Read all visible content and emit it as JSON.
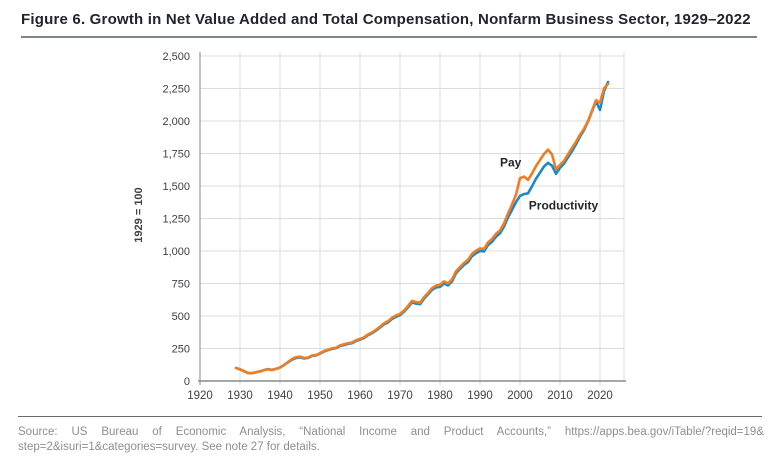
{
  "figure": {
    "title": "Figure 6. Growth in Net Value Added and Total Compensation, Nonfarm Business Sector, 1929–2022",
    "source_line1": "Source: US Bureau of Economic Analysis, “National Income and Product Accounts,” https://apps.bea.gov/iTable/?reqid=19&",
    "source_line2": "step=2&isuri=1&categories=survey. See note 27 for details."
  },
  "chart_data": {
    "type": "line",
    "title": "",
    "xlabel": "",
    "ylabel": "1929 = 100",
    "xlim": [
      1920,
      2026
    ],
    "ylim": [
      0,
      2500
    ],
    "grid": true,
    "legend": "inline-labels",
    "x_ticks": [
      1920,
      1930,
      1940,
      1950,
      1960,
      1970,
      1980,
      1990,
      2000,
      2010,
      2020
    ],
    "y_ticks": [
      0,
      250,
      500,
      750,
      1000,
      1250,
      1500,
      1750,
      2000,
      2250,
      2500
    ],
    "y_tick_labels": [
      "0",
      "250",
      "500",
      "750",
      "1,000",
      "1,250",
      "1,500",
      "1,750",
      "2,000",
      "2,250",
      "2,500"
    ],
    "colors": {
      "pay": "#EE7E23",
      "productivity": "#1E87C8",
      "grid": "#DBDCDE",
      "axis_left": "#9B9B9B",
      "axis_bottom": "#8A8A8A",
      "tick_text": "#3E4048",
      "annotation_text": "#23262F"
    },
    "annotations": [
      {
        "label": "Pay",
        "x": 1995,
        "y": 1650
      },
      {
        "label": "Productivity",
        "x": 2002.2,
        "y": 1320
      }
    ],
    "x": [
      1929,
      1930,
      1931,
      1932,
      1933,
      1934,
      1935,
      1936,
      1937,
      1938,
      1939,
      1940,
      1941,
      1942,
      1943,
      1944,
      1945,
      1946,
      1947,
      1948,
      1949,
      1950,
      1951,
      1952,
      1953,
      1954,
      1955,
      1956,
      1957,
      1958,
      1959,
      1960,
      1961,
      1962,
      1963,
      1964,
      1965,
      1966,
      1967,
      1968,
      1969,
      1970,
      1971,
      1972,
      1973,
      1974,
      1975,
      1976,
      1977,
      1978,
      1979,
      1980,
      1981,
      1982,
      1983,
      1984,
      1985,
      1986,
      1987,
      1988,
      1989,
      1990,
      1991,
      1992,
      1993,
      1994,
      1995,
      1996,
      1997,
      1998,
      1999,
      2000,
      2001,
      2002,
      2003,
      2004,
      2005,
      2006,
      2007,
      2008,
      2009,
      2010,
      2011,
      2012,
      2013,
      2014,
      2015,
      2016,
      2017,
      2018,
      2019,
      2020,
      2021,
      2022
    ],
    "series": [
      {
        "name": "Productivity",
        "color_key": "productivity",
        "values": [
          100,
          90,
          76,
          62,
          60,
          68,
          74,
          84,
          91,
          85,
          94,
          104,
          122,
          144,
          164,
          177,
          182,
          173,
          178,
          192,
          196,
          211,
          227,
          237,
          247,
          252,
          269,
          276,
          285,
          291,
          308,
          318,
          330,
          352,
          368,
          388,
          411,
          436,
          451,
          477,
          494,
          506,
          533,
          566,
          605,
          595,
          591,
          633,
          666,
          701,
          719,
          724,
          750,
          735,
          766,
          829,
          862,
          892,
          915,
          960,
          983,
          1000,
          997,
          1046,
          1071,
          1110,
          1136,
          1188,
          1258,
          1316,
          1376,
          1424,
          1438,
          1444,
          1498,
          1556,
          1602,
          1650,
          1678,
          1656,
          1594,
          1640,
          1672,
          1720,
          1768,
          1820,
          1880,
          1930,
          1995,
          2075,
          2150,
          2085,
          2230,
          2300
        ]
      },
      {
        "name": "Pay",
        "color_key": "pay",
        "values": [
          100,
          89,
          75,
          61,
          59,
          67,
          73,
          83,
          91,
          84,
          93,
          103,
          123,
          147,
          169,
          183,
          188,
          177,
          181,
          195,
          199,
          214,
          231,
          241,
          251,
          256,
          274,
          282,
          291,
          296,
          314,
          324,
          336,
          358,
          374,
          394,
          418,
          444,
          460,
          486,
          504,
          516,
          542,
          576,
          616,
          608,
          602,
          644,
          678,
          714,
          734,
          740,
          766,
          750,
          780,
          844,
          878,
          908,
          932,
          978,
          1002,
          1020,
          1016,
          1066,
          1092,
          1132,
          1158,
          1212,
          1288,
          1358,
          1434,
          1560,
          1572,
          1548,
          1596,
          1654,
          1700,
          1746,
          1780,
          1742,
          1628,
          1662,
          1694,
          1744,
          1792,
          1840,
          1895,
          1940,
          2000,
          2080,
          2160,
          2140,
          2250,
          2285
        ]
      }
    ]
  }
}
